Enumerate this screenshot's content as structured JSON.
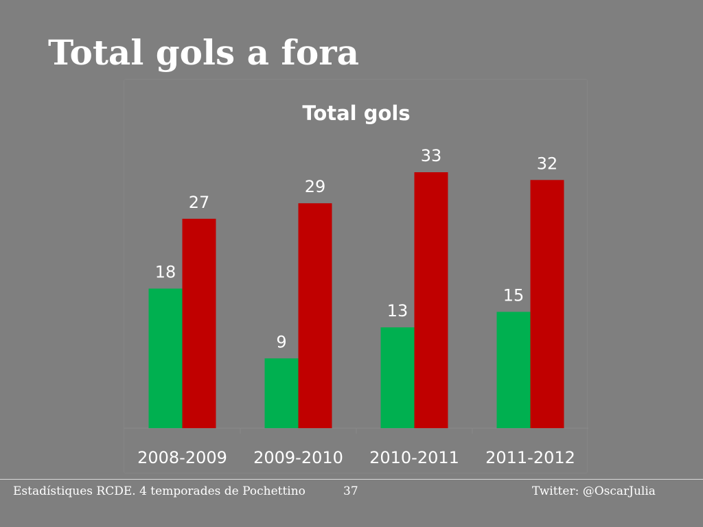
{
  "slide": {
    "title": "Total gols a fora"
  },
  "footer": {
    "left": "Estadístiques RCDE. 4 temporades de Pochettino",
    "page_number": "37",
    "right": "Twitter: @OscarJulia"
  },
  "chart_data": {
    "type": "bar",
    "title": "Total gols",
    "categories": [
      "2008-2009",
      "2009-2010",
      "2010-2011",
      "2011-2012"
    ],
    "series": [
      {
        "values": [
          18,
          9,
          13,
          15
        ],
        "color": "#00b050"
      },
      {
        "values": [
          27,
          29,
          33,
          32
        ],
        "color": "#c00000"
      }
    ],
    "data_labels": true,
    "legend": "none",
    "grid": false,
    "ylim": [
      0,
      33
    ]
  }
}
